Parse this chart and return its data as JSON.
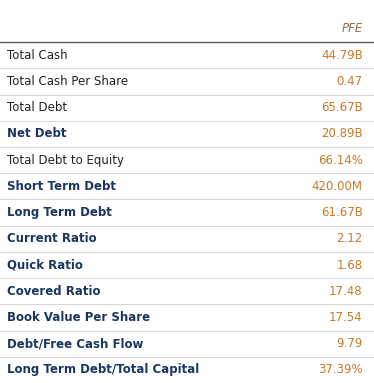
{
  "title": "PFE",
  "title_color": "#8b7355",
  "rows": [
    {
      "label": "Total Cash",
      "value": "44.79B",
      "bold": false
    },
    {
      "label": "Total Cash Per Share",
      "value": "0.47",
      "bold": false
    },
    {
      "label": "Total Debt",
      "value": "65.67B",
      "bold": false
    },
    {
      "label": "Net Debt",
      "value": "20.89B",
      "bold": true
    },
    {
      "label": "Total Debt to Equity",
      "value": "66.14%",
      "bold": false
    },
    {
      "label": "Short Term Debt",
      "value": "420.00M",
      "bold": true
    },
    {
      "label": "Long Term Debt",
      "value": "61.67B",
      "bold": true
    },
    {
      "label": "Current Ratio",
      "value": "2.12",
      "bold": true
    },
    {
      "label": "Quick Ratio",
      "value": "1.68",
      "bold": true
    },
    {
      "label": "Covered Ratio",
      "value": "17.48",
      "bold": true
    },
    {
      "label": "Book Value Per Share",
      "value": "17.54",
      "bold": true
    },
    {
      "label": "Debt/Free Cash Flow",
      "value": "9.79",
      "bold": true
    },
    {
      "label": "Long Term Debt/Total Capital",
      "value": "37.39%",
      "bold": true
    }
  ],
  "normal_label_color": "#222222",
  "bold_label_color": "#1a3560",
  "value_color": "#c8792a",
  "line_color": "#cccccc",
  "header_line_color": "#555555",
  "bg_color": "#ffffff",
  "font_size": 8.5,
  "header_font_size": 8.5,
  "fig_width": 3.74,
  "fig_height": 3.83,
  "dpi": 100
}
